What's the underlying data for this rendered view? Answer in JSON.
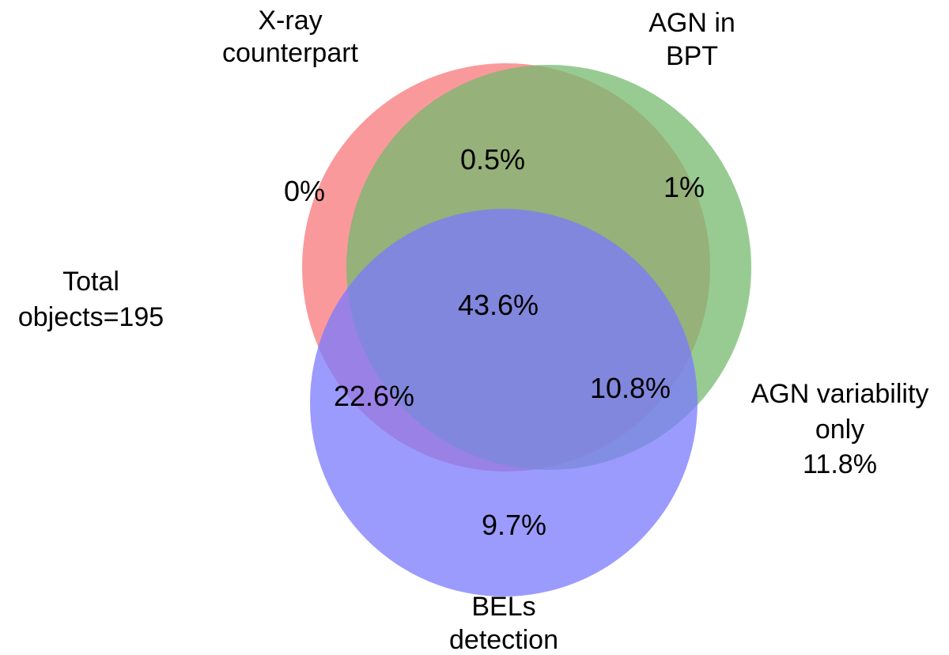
{
  "sets": {
    "xray": {
      "label_lines": [
        "X-ray",
        "counterpart"
      ],
      "color": "#F8777A"
    },
    "bpt": {
      "label_lines": [
        "AGN in",
        "BPT"
      ],
      "color": "#74B96E"
    },
    "bels": {
      "label_lines": [
        "BELs",
        "detection"
      ],
      "color": "#7A7AFD"
    }
  },
  "regions": {
    "xray_only": "0%",
    "bpt_only": "1%",
    "bels_only": "9.7%",
    "xray_bpt": "0.5%",
    "xray_bels": "22.6%",
    "bpt_bels": "10.8%",
    "all_three": "43.6%"
  },
  "total": {
    "label_lines": [
      "Total",
      "objects=195"
    ]
  },
  "variability_only": {
    "label_lines": [
      "AGN variability",
      "only",
      "11.8%"
    ]
  }
}
